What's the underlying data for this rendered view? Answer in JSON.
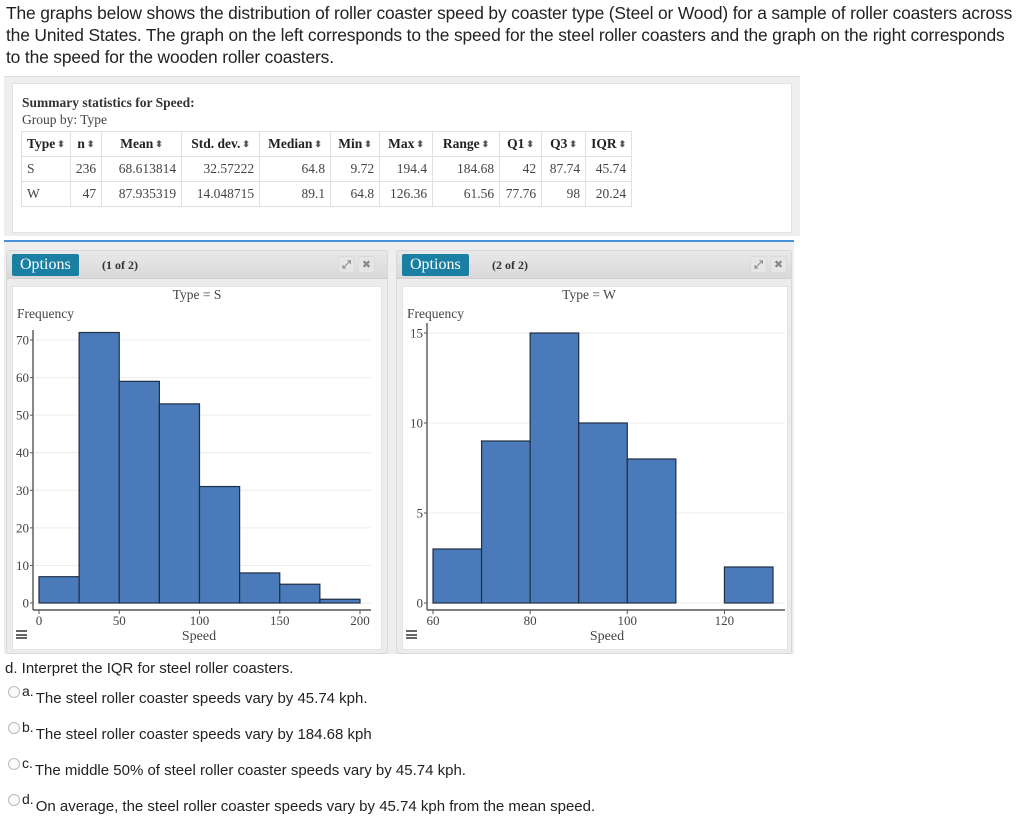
{
  "intro_text": "The graphs below shows the distribution of roller coaster speed by coaster type (Steel or Wood) for a sample of roller coasters across the United States. The graph on the left corresponds to the speed for the steel roller coasters and the graph on the right corresponds to the speed for the wooden roller coasters.",
  "summary": {
    "title": "Summary statistics for Speed:",
    "group_by": "Group by: Type",
    "sort_glyph": "⬍",
    "columns": [
      "Type",
      "n",
      "Mean",
      "Std. dev.",
      "Median",
      "Min",
      "Max",
      "Range",
      "Q1",
      "Q3",
      "IQR"
    ],
    "rows": [
      [
        "S",
        "236",
        "68.613814",
        "32.57222",
        "64.8",
        "9.72",
        "194.4",
        "184.68",
        "42",
        "87.74",
        "45.74"
      ],
      [
        "W",
        "47",
        "87.935319",
        "14.048715",
        "89.1",
        "64.8",
        "126.36",
        "61.56",
        "77.76",
        "98",
        "20.24"
      ]
    ]
  },
  "panels": [
    {
      "options_label": "Options",
      "counter": "(1 of 2)",
      "expand_icon": "⤢",
      "close_icon": "✖"
    },
    {
      "options_label": "Options",
      "counter": "(2 of 2)",
      "expand_icon": "⤢",
      "close_icon": "✖"
    }
  ],
  "chart_data": [
    {
      "type": "bar",
      "title": "Type = S",
      "xlabel": "Speed",
      "ylabel": "Frequency",
      "bin_edges": [
        0,
        25,
        50,
        75,
        100,
        125,
        150,
        175,
        200
      ],
      "categories": [
        "0-25",
        "25-50",
        "50-75",
        "75-100",
        "100-125",
        "125-150",
        "150-175",
        "175-200"
      ],
      "values": [
        7,
        72,
        59,
        53,
        31,
        8,
        5,
        1
      ],
      "xticks": [
        0,
        50,
        100,
        150,
        200
      ],
      "yticks": [
        0,
        10,
        20,
        30,
        40,
        50,
        60,
        70
      ],
      "xlim": [
        0,
        200
      ],
      "ylim": [
        0,
        72
      ],
      "grid": true,
      "color": "#4a7aba"
    },
    {
      "type": "bar",
      "title": "Type = W",
      "xlabel": "Speed",
      "ylabel": "Frequency",
      "bin_edges": [
        60,
        70,
        80,
        90,
        100,
        110,
        120,
        130
      ],
      "categories": [
        "60-70",
        "70-80",
        "80-90",
        "90-100",
        "100-110",
        "110-120",
        "120-130"
      ],
      "values": [
        3,
        9,
        15,
        10,
        8,
        0,
        2
      ],
      "xticks": [
        60,
        80,
        100,
        120
      ],
      "yticks": [
        0,
        5,
        10,
        15
      ],
      "xlim": [
        60,
        130
      ],
      "ylim": [
        0,
        15
      ],
      "grid": true,
      "color": "#4a7aba"
    }
  ],
  "question": {
    "prompt": "d. Interpret the IQR for steel roller coasters.",
    "options": [
      {
        "letter": "a.",
        "text": "The steel roller coaster speeds vary by 45.74 kph."
      },
      {
        "letter": "b.",
        "text": "The steel roller coaster speeds vary by 184.68 kph"
      },
      {
        "letter": "c.",
        "text": "The middle 50% of steel roller coaster speeds vary by 45.74 kph."
      },
      {
        "letter": "d.",
        "text": "On average, the steel roller coaster speeds vary by 45.74 kph from the mean speed."
      }
    ]
  }
}
